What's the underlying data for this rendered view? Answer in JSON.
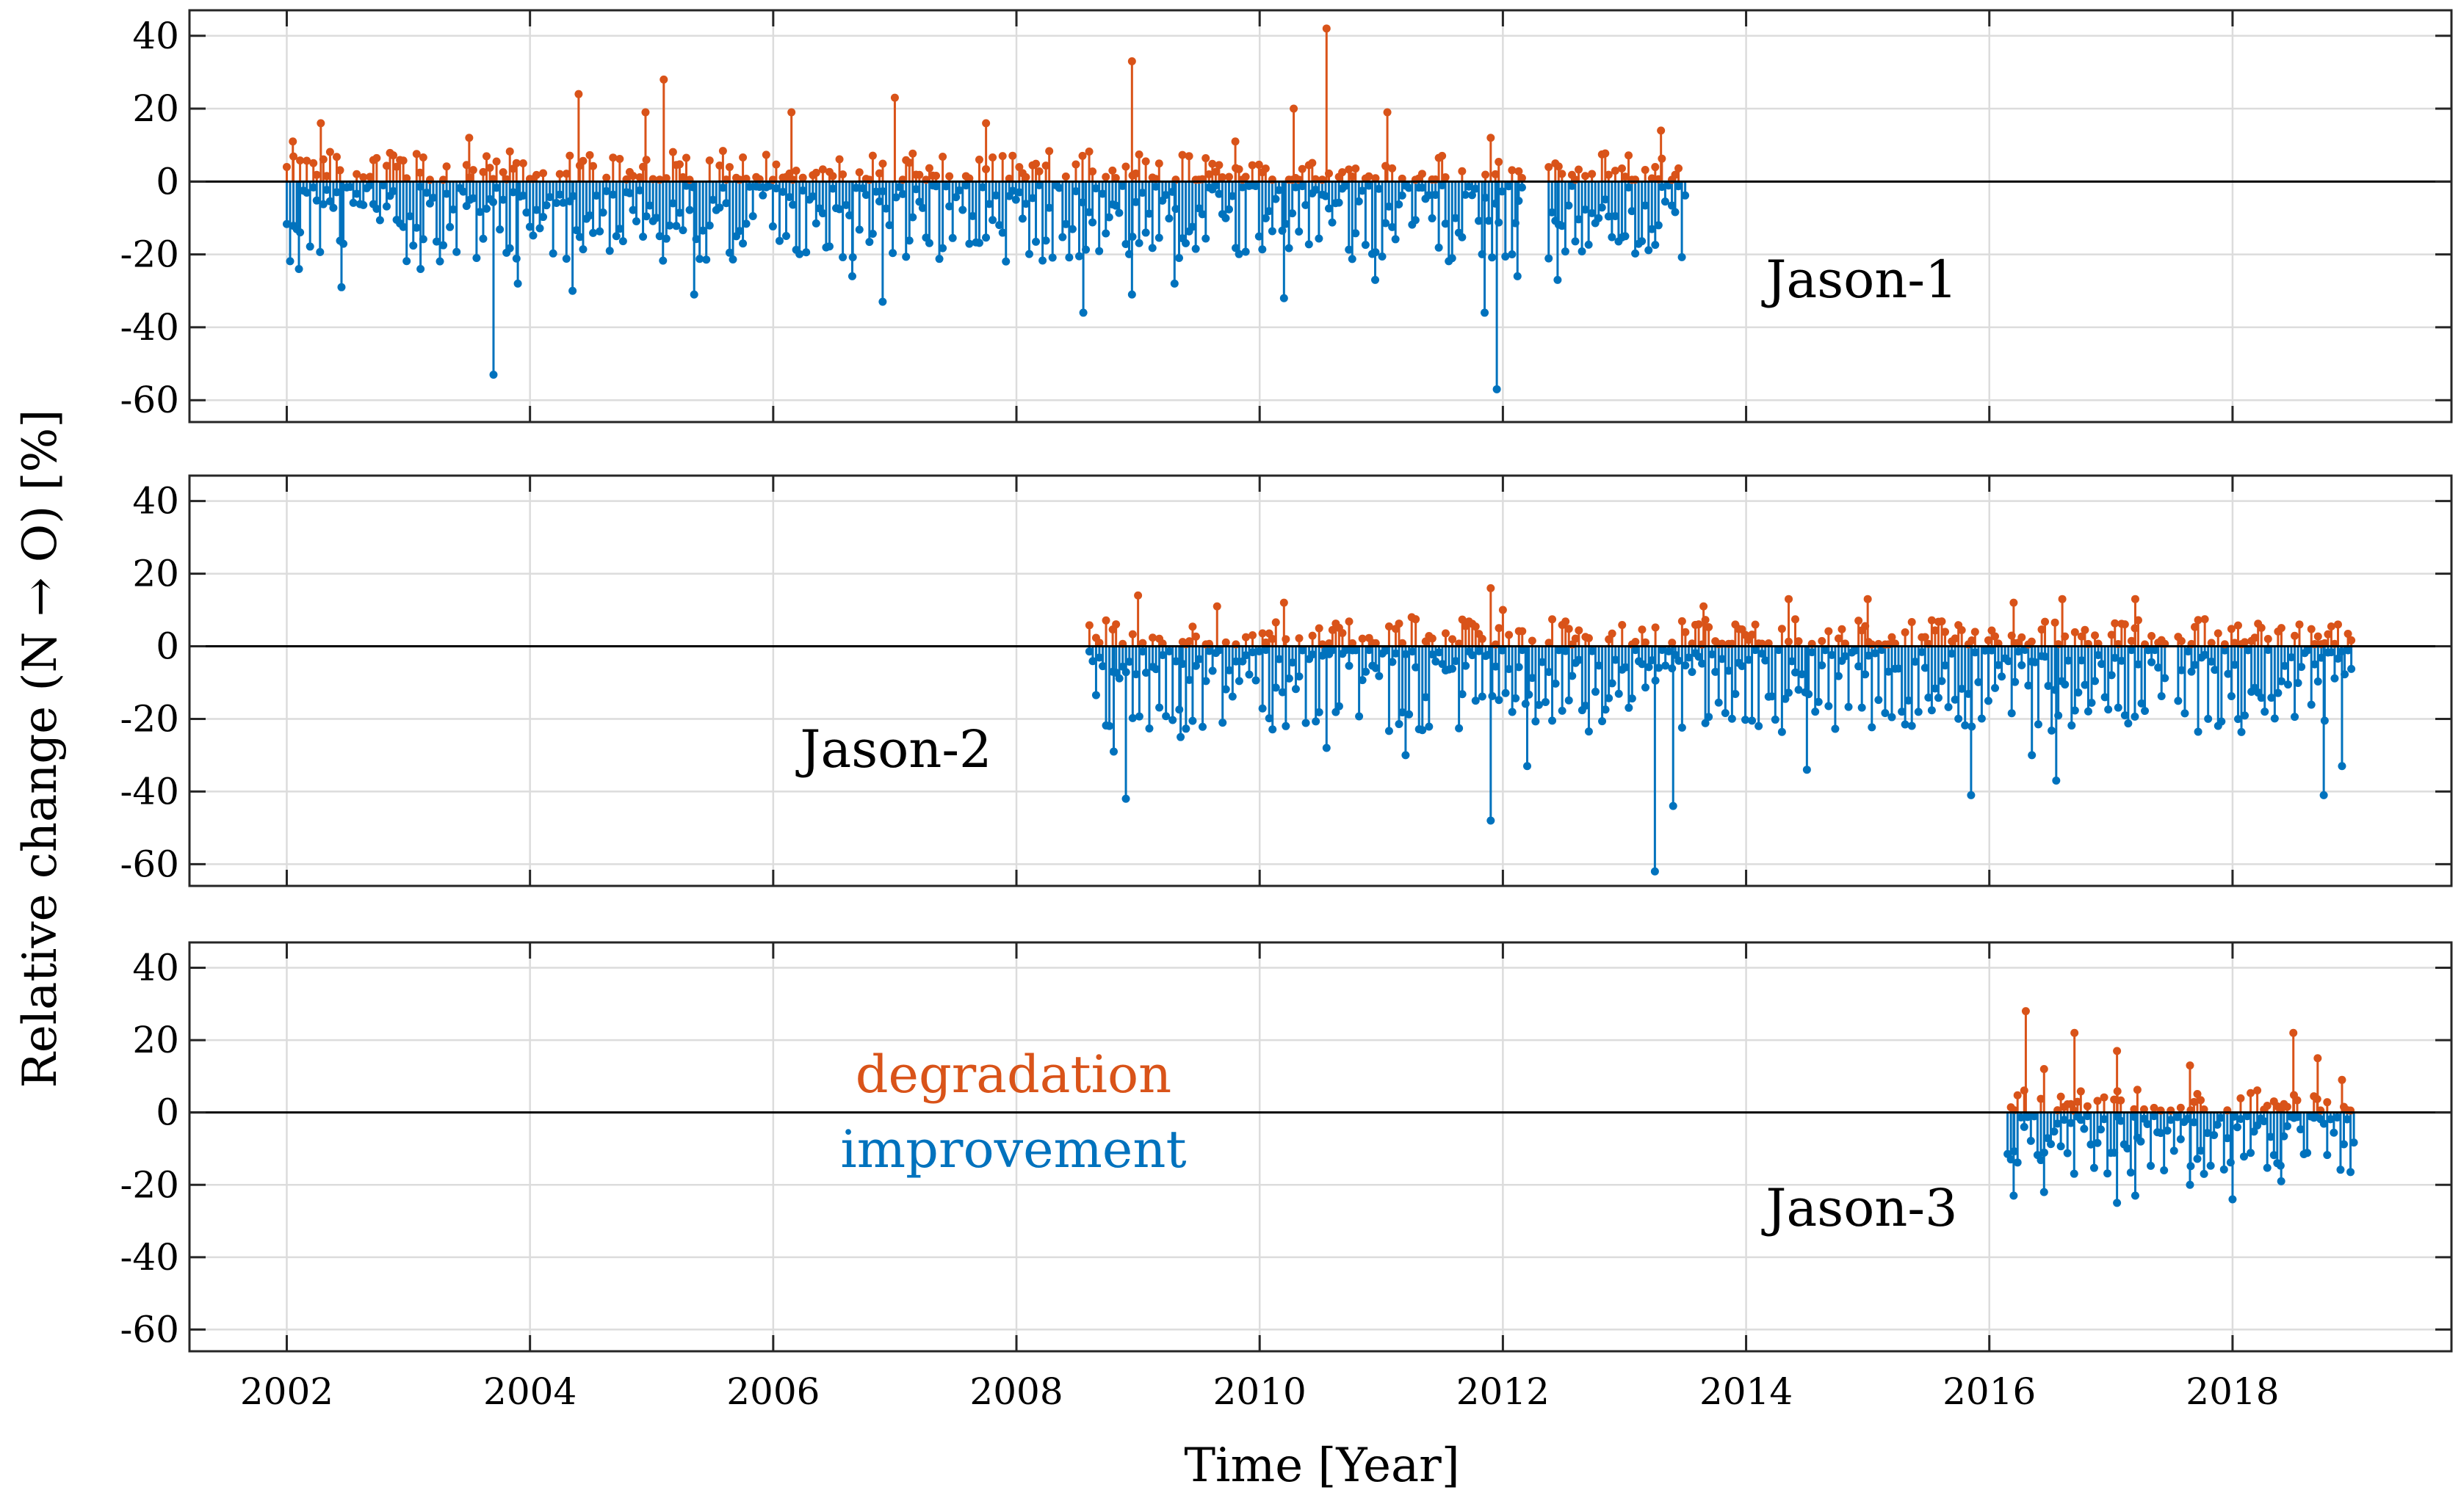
{
  "colors": {
    "degradation": "#D95319",
    "improvement": "#0072BD"
  },
  "chart_data": {
    "type": "stem",
    "xlabel": "Time [Year]",
    "ylabel": "Relative change (N → O) [%]",
    "xlim": [
      2001.2,
      2019.8
    ],
    "ylim": [
      -66,
      47
    ],
    "xticks": [
      2002,
      2004,
      2006,
      2008,
      2010,
      2012,
      2014,
      2016,
      2018
    ],
    "xtick_labels": [
      "2002",
      "2004",
      "2006",
      "2008",
      "2010",
      "2012",
      "2014",
      "2016",
      "2018"
    ],
    "yticks": [
      40,
      20,
      0,
      -20,
      -40,
      -60
    ],
    "ytick_labels": [
      "40",
      "20",
      "0",
      "-20",
      "-40",
      "-60"
    ],
    "legend": {
      "degradation": "degradation",
      "improvement": "improvement"
    },
    "panels": [
      {
        "name": "Jason-1",
        "label": "Jason-1",
        "label_position": "right-middle",
        "data_range": [
          2002.0,
          2013.5
        ],
        "gaps": [
          [
            2012.17,
            2012.35
          ]
        ],
        "degradation_typical_max": 8,
        "improvement_typical_min": -22,
        "degradation_peaks": [
          {
            "x": 2002.05,
            "y": 11
          },
          {
            "x": 2002.28,
            "y": 16
          },
          {
            "x": 2003.5,
            "y": 12
          },
          {
            "x": 2004.4,
            "y": 24
          },
          {
            "x": 2004.95,
            "y": 19
          },
          {
            "x": 2005.1,
            "y": 28
          },
          {
            "x": 2006.15,
            "y": 19
          },
          {
            "x": 2007.0,
            "y": 23
          },
          {
            "x": 2007.75,
            "y": 16
          },
          {
            "x": 2008.95,
            "y": 33
          },
          {
            "x": 2009.8,
            "y": 11
          },
          {
            "x": 2010.28,
            "y": 20
          },
          {
            "x": 2010.55,
            "y": 42
          },
          {
            "x": 2011.05,
            "y": 19
          },
          {
            "x": 2011.9,
            "y": 12
          },
          {
            "x": 2013.3,
            "y": 14
          }
        ],
        "improvement_peaks": [
          {
            "x": 2002.1,
            "y": -24
          },
          {
            "x": 2002.45,
            "y": -29
          },
          {
            "x": 2003.1,
            "y": -24
          },
          {
            "x": 2003.7,
            "y": -53
          },
          {
            "x": 2003.9,
            "y": -28
          },
          {
            "x": 2004.35,
            "y": -30
          },
          {
            "x": 2005.35,
            "y": -31
          },
          {
            "x": 2006.65,
            "y": -26
          },
          {
            "x": 2006.9,
            "y": -33
          },
          {
            "x": 2008.55,
            "y": -36
          },
          {
            "x": 2008.95,
            "y": -31
          },
          {
            "x": 2009.3,
            "y": -28
          },
          {
            "x": 2010.2,
            "y": -32
          },
          {
            "x": 2010.95,
            "y": -27
          },
          {
            "x": 2011.85,
            "y": -36
          },
          {
            "x": 2011.95,
            "y": -57
          },
          {
            "x": 2012.12,
            "y": -26
          },
          {
            "x": 2012.45,
            "y": -27
          }
        ]
      },
      {
        "name": "Jason-2",
        "label": "Jason-2",
        "label_position": "left-middle",
        "data_range": [
          2008.6,
          2019.0
        ],
        "gaps": [
          [
            2017.45,
            2017.55
          ]
        ],
        "degradation_typical_max": 7,
        "improvement_typical_min": -24,
        "degradation_peaks": [
          {
            "x": 2009.0,
            "y": 14
          },
          {
            "x": 2009.65,
            "y": 11
          },
          {
            "x": 2010.2,
            "y": 12
          },
          {
            "x": 2011.25,
            "y": 8
          },
          {
            "x": 2011.9,
            "y": 16
          },
          {
            "x": 2012.0,
            "y": 10
          },
          {
            "x": 2013.65,
            "y": 11
          },
          {
            "x": 2014.35,
            "y": 13
          },
          {
            "x": 2015.0,
            "y": 13
          },
          {
            "x": 2016.2,
            "y": 12
          },
          {
            "x": 2016.6,
            "y": 13
          },
          {
            "x": 2017.2,
            "y": 13
          },
          {
            "x": 2018.55,
            "y": 6
          }
        ],
        "improvement_peaks": [
          {
            "x": 2008.9,
            "y": -42
          },
          {
            "x": 2008.8,
            "y": -29
          },
          {
            "x": 2009.35,
            "y": -25
          },
          {
            "x": 2010.55,
            "y": -28
          },
          {
            "x": 2011.2,
            "y": -30
          },
          {
            "x": 2011.9,
            "y": -48
          },
          {
            "x": 2012.2,
            "y": -33
          },
          {
            "x": 2013.25,
            "y": -62
          },
          {
            "x": 2013.4,
            "y": -44
          },
          {
            "x": 2014.5,
            "y": -34
          },
          {
            "x": 2015.85,
            "y": -41
          },
          {
            "x": 2016.55,
            "y": -37
          },
          {
            "x": 2016.35,
            "y": -30
          },
          {
            "x": 2018.75,
            "y": -41
          },
          {
            "x": 2018.9,
            "y": -33
          }
        ]
      },
      {
        "name": "Jason-3",
        "label": "Jason-3",
        "label_position": "right-lower",
        "data_range": [
          2016.15,
          2019.0
        ],
        "gaps": [],
        "degradation_typical_max": 6,
        "improvement_typical_min": -17,
        "degradation_peaks": [
          {
            "x": 2016.3,
            "y": 28
          },
          {
            "x": 2016.45,
            "y": 12
          },
          {
            "x": 2016.7,
            "y": 22
          },
          {
            "x": 2017.05,
            "y": 17
          },
          {
            "x": 2017.65,
            "y": 13
          },
          {
            "x": 2018.5,
            "y": 22
          },
          {
            "x": 2018.7,
            "y": 15
          },
          {
            "x": 2018.9,
            "y": 9
          }
        ],
        "improvement_peaks": [
          {
            "x": 2016.2,
            "y": -23
          },
          {
            "x": 2016.45,
            "y": -22
          },
          {
            "x": 2017.05,
            "y": -25
          },
          {
            "x": 2017.2,
            "y": -23
          },
          {
            "x": 2017.65,
            "y": -20
          },
          {
            "x": 2018.0,
            "y": -24
          },
          {
            "x": 2018.4,
            "y": -19
          }
        ]
      }
    ]
  }
}
